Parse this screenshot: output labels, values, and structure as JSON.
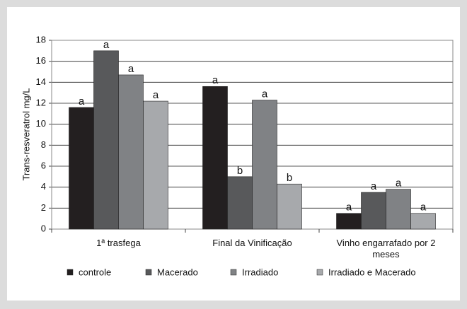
{
  "chart_data": {
    "type": "bar",
    "y_label": "Trans-resveratrol mg/L",
    "categories": [
      "1ª trasfega",
      "Final da Vinificação",
      "Vinho engarrafado por 2 meses"
    ],
    "series": [
      {
        "name": "controle",
        "color": "#231f20",
        "values": [
          11.6,
          13.6,
          1.5
        ],
        "value_labels": [
          "a",
          "a",
          "a"
        ]
      },
      {
        "name": "Macerado",
        "color": "#58595b",
        "values": [
          17,
          5,
          3.5
        ],
        "value_labels": [
          "a",
          "b",
          "a"
        ]
      },
      {
        "name": "Irradiado",
        "color": "#808285",
        "values": [
          14.7,
          12.3,
          3.8
        ],
        "value_labels": [
          "a",
          "a",
          "a"
        ]
      },
      {
        "name": "Irradiado e Macerado",
        "color": "#a7a9ac",
        "values": [
          12.2,
          4.3,
          1.5
        ],
        "value_labels": [
          "a",
          "b",
          "a"
        ]
      }
    ],
    "ylim": [
      0,
      18
    ],
    "yticks": [
      0,
      2,
      4,
      6,
      8,
      10,
      12,
      14,
      16,
      18
    ],
    "grid": true,
    "legend": "bottom"
  }
}
